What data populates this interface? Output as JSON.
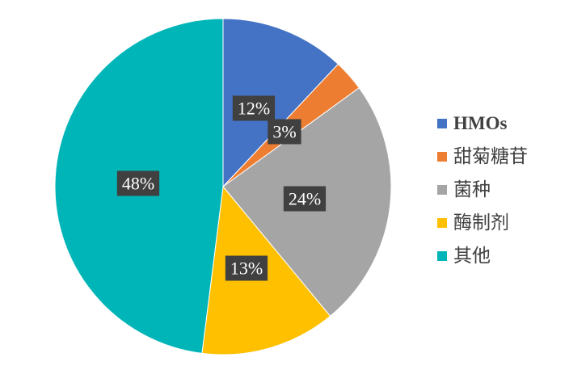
{
  "chart_data": {
    "type": "pie",
    "slices": [
      {
        "name": "HMOs",
        "value": 12,
        "label": "12%",
        "color": "#4472C4"
      },
      {
        "name": "甜菊糖苷",
        "value": 3,
        "label": "3%",
        "color": "#ED7D31"
      },
      {
        "name": "菌种",
        "value": 24,
        "label": "24%",
        "color": "#A5A5A5"
      },
      {
        "name": "酶制剂",
        "value": 13,
        "label": "13%",
        "color": "#FFC000"
      },
      {
        "name": "其他",
        "value": 48,
        "label": "48%",
        "color": "#00B5B8"
      }
    ],
    "legend_placement": "right",
    "data_label_style": "dark boxes with white text"
  }
}
